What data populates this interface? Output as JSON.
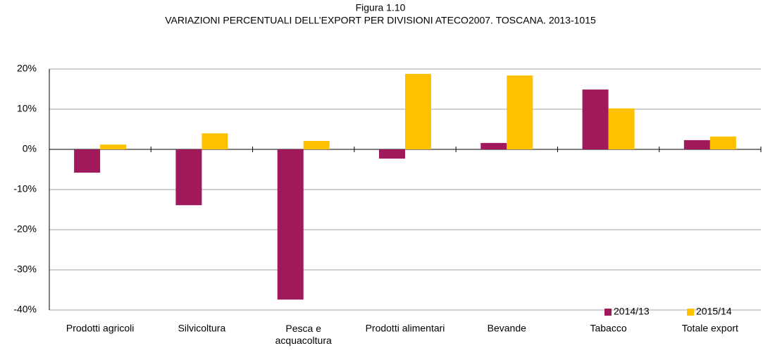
{
  "chart_data": {
    "type": "bar",
    "figure_label": "Figura 1.10",
    "title": "VARIAZIONI PERCENTUALI DELL’EXPORT PER DIVISIONI ATECO2007. TOSCANA. 2013-1015",
    "categories": [
      "Prodotti agricoli",
      "Silvicoltura",
      "Pesca e\nacquacoltura",
      "Prodotti alimentari",
      "Bevande",
      "Tabacco",
      "Totale export"
    ],
    "series": [
      {
        "name": "2014/13",
        "color": "#a0195a",
        "values": [
          -5.8,
          -13.9,
          -37.4,
          -2.3,
          1.6,
          14.9,
          2.3
        ]
      },
      {
        "name": "2015/14",
        "color": "#ffc000",
        "values": [
          1.2,
          4.0,
          2.1,
          18.8,
          18.4,
          10.2,
          3.2
        ]
      }
    ],
    "ylim": [
      -40,
      20
    ],
    "yticks": [
      {
        "value": -40,
        "label": "-40%"
      },
      {
        "value": -30,
        "label": "-30%"
      },
      {
        "value": -20,
        "label": "-20%"
      },
      {
        "value": -10,
        "label": "-10%"
      },
      {
        "value": 0,
        "label": "0%"
      },
      {
        "value": 10,
        "label": "10%"
      },
      {
        "value": 20,
        "label": "20%"
      }
    ],
    "grid": true,
    "legend": "bottom-right"
  }
}
